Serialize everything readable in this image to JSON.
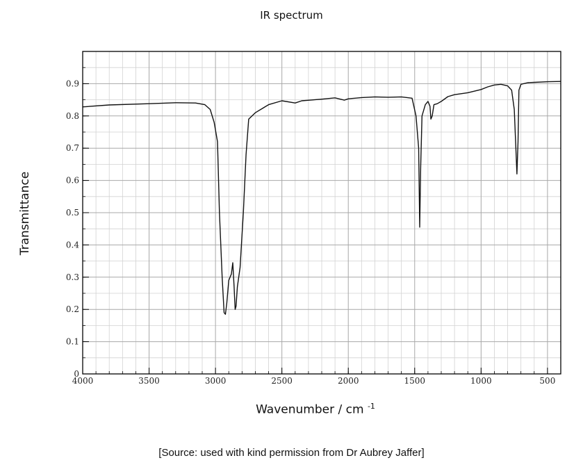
{
  "chart_data": {
    "type": "line",
    "title": "IR spectrum",
    "ylabel": "Transmittance",
    "xlabel_main": "Wavenumber / cm",
    "xlabel_sup": "-1",
    "xlim": [
      4000,
      400
    ],
    "ylim": [
      0,
      1.0
    ],
    "x_reversed": true,
    "grid": true,
    "x_ticks": [
      4000,
      3500,
      3000,
      2500,
      2000,
      1500,
      1000,
      500
    ],
    "y_ticks": [
      0,
      0.1,
      0.2,
      0.3,
      0.4,
      0.5,
      0.6,
      0.7,
      0.8,
      0.9
    ],
    "x_tick_labels": [
      "4000",
      "3500",
      "3000",
      "2500",
      "2000",
      "1500",
      "1000",
      "500"
    ],
    "y_tick_labels": [
      "0",
      "0.1",
      "0.2",
      "0.3",
      "0.4",
      "0.5",
      "0.6",
      "0.7",
      "0.8",
      "0.9"
    ],
    "series": [
      {
        "color": "#111111",
        "points": [
          [
            4000,
            0.828
          ],
          [
            3800,
            0.834
          ],
          [
            3500,
            0.838
          ],
          [
            3300,
            0.841
          ],
          [
            3150,
            0.84
          ],
          [
            3080,
            0.835
          ],
          [
            3040,
            0.82
          ],
          [
            3010,
            0.78
          ],
          [
            2985,
            0.72
          ],
          [
            2970,
            0.5
          ],
          [
            2950,
            0.3
          ],
          [
            2935,
            0.19
          ],
          [
            2925,
            0.185
          ],
          [
            2915,
            0.22
          ],
          [
            2900,
            0.29
          ],
          [
            2880,
            0.31
          ],
          [
            2870,
            0.345
          ],
          [
            2860,
            0.27
          ],
          [
            2852,
            0.2
          ],
          [
            2845,
            0.21
          ],
          [
            2835,
            0.27
          ],
          [
            2815,
            0.33
          ],
          [
            2790,
            0.5
          ],
          [
            2770,
            0.68
          ],
          [
            2750,
            0.79
          ],
          [
            2700,
            0.81
          ],
          [
            2600,
            0.835
          ],
          [
            2500,
            0.847
          ],
          [
            2400,
            0.84
          ],
          [
            2350,
            0.847
          ],
          [
            2200,
            0.852
          ],
          [
            2100,
            0.856
          ],
          [
            2030,
            0.849
          ],
          [
            2000,
            0.853
          ],
          [
            1900,
            0.857
          ],
          [
            1800,
            0.859
          ],
          [
            1700,
            0.858
          ],
          [
            1600,
            0.859
          ],
          [
            1520,
            0.855
          ],
          [
            1490,
            0.8
          ],
          [
            1470,
            0.7
          ],
          [
            1462,
            0.455
          ],
          [
            1455,
            0.64
          ],
          [
            1445,
            0.8
          ],
          [
            1420,
            0.835
          ],
          [
            1400,
            0.845
          ],
          [
            1385,
            0.83
          ],
          [
            1378,
            0.79
          ],
          [
            1368,
            0.8
          ],
          [
            1355,
            0.835
          ],
          [
            1330,
            0.838
          ],
          [
            1300,
            0.845
          ],
          [
            1250,
            0.86
          ],
          [
            1200,
            0.866
          ],
          [
            1100,
            0.872
          ],
          [
            1000,
            0.882
          ],
          [
            950,
            0.89
          ],
          [
            900,
            0.896
          ],
          [
            850,
            0.898
          ],
          [
            800,
            0.893
          ],
          [
            770,
            0.88
          ],
          [
            750,
            0.82
          ],
          [
            730,
            0.62
          ],
          [
            722,
            0.72
          ],
          [
            715,
            0.88
          ],
          [
            700,
            0.898
          ],
          [
            650,
            0.903
          ],
          [
            600,
            0.904
          ],
          [
            500,
            0.906
          ],
          [
            400,
            0.907
          ]
        ]
      }
    ]
  },
  "source_note": "[Source: used with kind permission from Dr Aubrey Jaffer]"
}
